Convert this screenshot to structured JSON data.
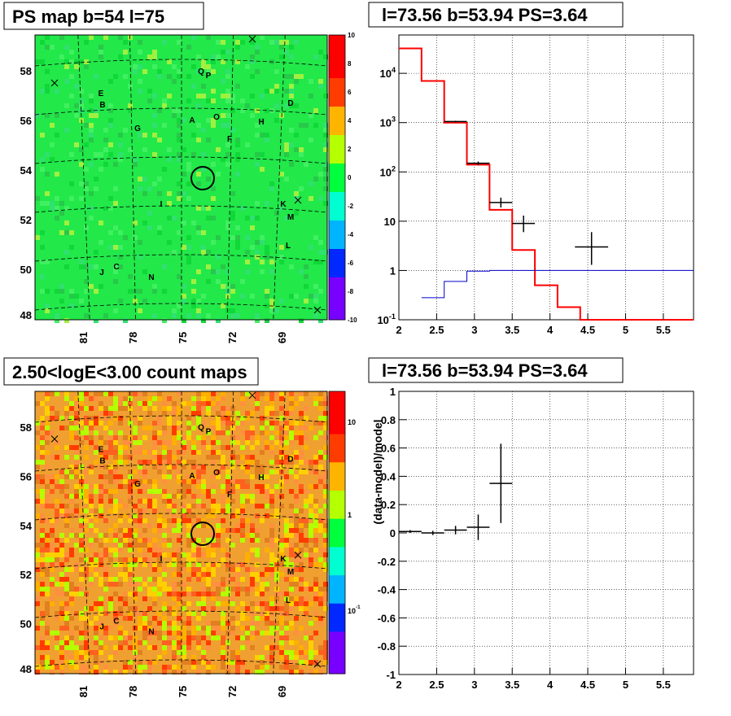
{
  "chart_data": [
    {
      "panel": "top-left",
      "type": "heatmap",
      "title": "PS map b=54 l=75",
      "y_ticks": [
        "58",
        "56",
        "54",
        "52",
        "50",
        "48"
      ],
      "x_ticks": [
        "81",
        "78",
        "75",
        "72",
        "69"
      ],
      "colorbar_ticks": [
        "10",
        "8",
        "6",
        "4",
        "2",
        "0",
        "-2",
        "-4",
        "-6",
        "-8",
        "-10"
      ],
      "colorbar_range": [
        -10,
        10
      ],
      "colors": [
        "#7800ff",
        "#0028ff",
        "#00b4ff",
        "#00ffd0",
        "#00ff3c",
        "#b4ff00",
        "#ffb400",
        "#ff3c00",
        "#ff0000"
      ],
      "dominant_color": "#22e84a",
      "sources": [
        "Q",
        "P",
        "E",
        "B",
        "D",
        "A",
        "O",
        "G",
        "H",
        "F",
        "I",
        "K",
        "M",
        "L",
        "J",
        "C",
        "N"
      ]
    },
    {
      "panel": "top-right",
      "type": "line",
      "title": "l=73.56 b=53.94 PS=3.64",
      "scale": "log-y",
      "xlim": [
        2,
        5.9
      ],
      "ylim": [
        0.1,
        60000
      ],
      "x_ticks": [
        "2",
        "2.5",
        "3",
        "3.5",
        "4",
        "4.5",
        "5",
        "5.5"
      ],
      "y_ticks": [
        "10^{-1}",
        "1",
        "10",
        "10^{2}",
        "10^{3}",
        "10^{4}"
      ],
      "series": [
        {
          "color": "#ff0000",
          "bins": [
            2.0,
            2.3,
            2.6,
            2.9,
            3.2,
            3.5,
            3.8,
            4.1,
            4.4,
            5.9
          ],
          "values": [
            32000,
            7000,
            1000,
            140,
            17,
            2.6,
            0.5,
            0.18,
            0.1
          ]
        },
        {
          "color": "#000000",
          "points": [
            {
              "x": 2.75,
              "y": 1050,
              "xerr": 0.15,
              "yerr": [
                1010,
                1090
              ]
            },
            {
              "x": 3.05,
              "y": 150,
              "xerr": 0.15,
              "yerr": [
                138,
                162
              ]
            },
            {
              "x": 3.35,
              "y": 24,
              "xerr": 0.15,
              "yerr": [
                19,
                30
              ]
            },
            {
              "x": 3.65,
              "y": 9.0,
              "xerr": 0.15,
              "yerr": [
                6,
                13
              ]
            },
            {
              "x": 4.55,
              "y": 3.0,
              "xerr": 0.22,
              "yerr": [
                1.3,
                6
              ]
            }
          ]
        },
        {
          "color": "#0000cc",
          "bins": [
            2.3,
            2.6,
            2.9,
            3.2,
            5.9
          ],
          "values": [
            0.28,
            0.6,
            0.97,
            1.0
          ]
        }
      ]
    },
    {
      "panel": "bottom-left",
      "type": "heatmap",
      "title": "2.50<logE<3.00 count maps",
      "y_ticks": [
        "58",
        "56",
        "54",
        "52",
        "50",
        "48"
      ],
      "x_ticks": [
        "81",
        "78",
        "75",
        "72",
        "69"
      ],
      "colorbar_ticks": [
        "10",
        "1",
        "10^{-1}"
      ],
      "colors": [
        "#7800ff",
        "#0028ff",
        "#00b4ff",
        "#00ffd0",
        "#00ff3c",
        "#b4ff00",
        "#ffb400",
        "#ff3c00",
        "#ff0000"
      ],
      "dominant_color": "#f0a030",
      "sources": [
        "Q",
        "P",
        "E",
        "B",
        "D",
        "A",
        "O",
        "G",
        "H",
        "F",
        "I",
        "K",
        "M",
        "L",
        "J",
        "C",
        "N"
      ]
    },
    {
      "panel": "bottom-right",
      "type": "scatter",
      "title": "l=73.56 b=53.94 PS=3.64",
      "ylabel": "(data-model)/model",
      "xlim": [
        2,
        5.9
      ],
      "ylim": [
        -1,
        1
      ],
      "x_ticks": [
        "2",
        "2.5",
        "3",
        "3.5",
        "4",
        "4.5",
        "5",
        "5.5"
      ],
      "y_ticks": [
        "1",
        "0.8",
        "0.6",
        "0.4",
        "0.2",
        "0",
        "-0.2",
        "-0.4",
        "-0.6",
        "-0.8",
        "-1"
      ],
      "points": [
        {
          "x": 2.15,
          "y": 0.01,
          "xerr": 0.15,
          "yerr": 0.01
        },
        {
          "x": 2.45,
          "y": 0.0,
          "xerr": 0.15,
          "yerr": 0.015
        },
        {
          "x": 2.75,
          "y": 0.02,
          "xerr": 0.15,
          "yerr": 0.03
        },
        {
          "x": 3.05,
          "y": 0.04,
          "xerr": 0.15,
          "yerr": 0.09
        },
        {
          "x": 3.35,
          "y": 0.35,
          "xerr": 0.15,
          "yerr": 0.28
        }
      ]
    }
  ]
}
